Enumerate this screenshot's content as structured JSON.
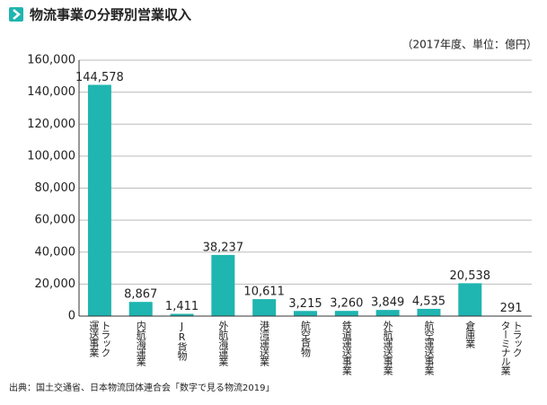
{
  "chart_data": {
    "type": "bar",
    "title": "物流事業の分野別営業収入",
    "subtitle": "（2017年度、単位：億円）",
    "source": "出典：国土交通省、日本物流団体連合会「数字で見る物流2019」",
    "categories": [
      "トラック\n運送事業",
      "内航海運業",
      "JR貨物",
      "外航海運業",
      "港湾運送業",
      "航空貨物",
      "鉄道運送事業",
      "外航運送事業",
      "航空運送事業",
      "倉庫業",
      "トラック\nターミナル業"
    ],
    "values": [
      144578,
      8867,
      1411,
      38237,
      10611,
      3215,
      3260,
      3849,
      4535,
      20538,
      291
    ],
    "value_labels": [
      "144,578",
      "8,867",
      "1,411",
      "38,237",
      "10,611",
      "3,215",
      "3,260",
      "3,849",
      "4,535",
      "20,538",
      "291"
    ],
    "color": "#1fb5b0",
    "ylim": [
      0,
      160000
    ],
    "yticks": [
      {
        "value": 0,
        "label": "0"
      },
      {
        "value": 20000,
        "label": "20,000"
      },
      {
        "value": 40000,
        "label": "40,000"
      },
      {
        "value": 60000,
        "label": "60,000"
      },
      {
        "value": 80000,
        "label": "80,000"
      },
      {
        "value": 100000,
        "label": "100,000"
      },
      {
        "value": 120000,
        "label": "120,000"
      },
      {
        "value": 140000,
        "label": "140,000"
      },
      {
        "value": 160000,
        "label": "160,000"
      }
    ],
    "grid": true
  }
}
